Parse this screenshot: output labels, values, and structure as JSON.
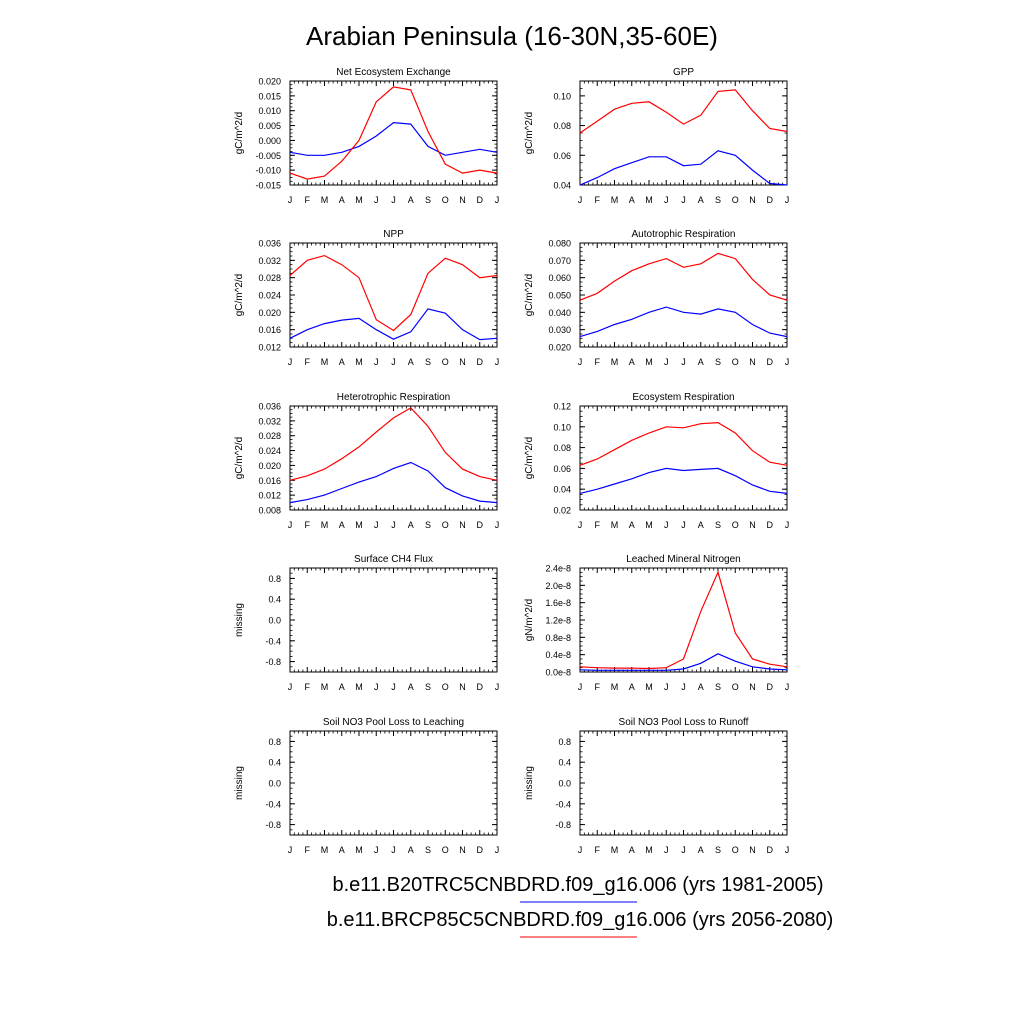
{
  "title": "Arabian Peninsula (16-30N,35-60E)",
  "months": [
    "J",
    "F",
    "M",
    "A",
    "M",
    "J",
    "J",
    "A",
    "S",
    "O",
    "N",
    "D",
    "J"
  ],
  "legend": [
    {
      "label": "b.e11.B20TRC5CNBDRD.f09_g16.006 (yrs 1981-2005)",
      "color": "#0000ff"
    },
    {
      "label": "b.e11.BRCP85C5CNBDRD.f09_g16.006 (yrs 2056-2080)",
      "color": "#ff0000"
    }
  ],
  "chart_data": [
    {
      "type": "line",
      "title": "Net Ecosystem Exchange",
      "ylabel": "gC/m^2/d",
      "ylim": [
        -0.015,
        0.02
      ],
      "yticks": [
        -0.015,
        -0.01,
        -0.005,
        0.0,
        0.005,
        0.01,
        0.015,
        0.02
      ],
      "ytick_labels": [
        "-0.015",
        "-0.010",
        "-0.005",
        "0.000",
        "0.005",
        "0.010",
        "0.015",
        "0.020"
      ],
      "series": [
        {
          "color": "#0000ff",
          "values": [
            -0.004,
            -0.005,
            -0.005,
            -0.004,
            -0.002,
            0.0015,
            0.006,
            0.0055,
            -0.002,
            -0.005,
            -0.004,
            -0.003,
            -0.004
          ]
        },
        {
          "color": "#ff0000",
          "values": [
            -0.011,
            -0.013,
            -0.012,
            -0.007,
            0.0,
            0.013,
            0.018,
            0.017,
            0.003,
            -0.008,
            -0.011,
            -0.01,
            -0.011
          ]
        }
      ]
    },
    {
      "type": "line",
      "title": "GPP",
      "ylabel": "gC/m^2/d",
      "ylim": [
        0.04,
        0.11
      ],
      "yticks": [
        0.04,
        0.06,
        0.08,
        0.1
      ],
      "ytick_labels": [
        "0.04",
        "0.06",
        "0.08",
        "0.10"
      ],
      "series": [
        {
          "color": "#0000ff",
          "values": [
            0.04,
            0.045,
            0.051,
            0.055,
            0.059,
            0.059,
            0.053,
            0.054,
            0.063,
            0.06,
            0.05,
            0.041,
            0.04
          ]
        },
        {
          "color": "#ff0000",
          "values": [
            0.075,
            0.083,
            0.091,
            0.095,
            0.096,
            0.089,
            0.081,
            0.087,
            0.103,
            0.104,
            0.09,
            0.078,
            0.076
          ]
        }
      ]
    },
    {
      "type": "line",
      "title": "NPP",
      "ylabel": "gC/m^2/d",
      "ylim": [
        0.012,
        0.036
      ],
      "yticks": [
        0.012,
        0.016,
        0.02,
        0.024,
        0.028,
        0.032,
        0.036
      ],
      "ytick_labels": [
        "0.012",
        "0.016",
        "0.020",
        "0.024",
        "0.028",
        "0.032",
        "0.036"
      ],
      "series": [
        {
          "color": "#0000ff",
          "values": [
            0.014,
            0.016,
            0.0174,
            0.0182,
            0.0186,
            0.016,
            0.0138,
            0.0155,
            0.0208,
            0.0198,
            0.016,
            0.0137,
            0.014
          ]
        },
        {
          "color": "#ff0000",
          "values": [
            0.0285,
            0.032,
            0.0331,
            0.031,
            0.028,
            0.0183,
            0.0158,
            0.0195,
            0.029,
            0.0325,
            0.031,
            0.028,
            0.0285
          ]
        }
      ]
    },
    {
      "type": "line",
      "title": "Autotrophic Respiration",
      "ylabel": "gC/m^2/d",
      "ylim": [
        0.02,
        0.08
      ],
      "yticks": [
        0.02,
        0.03,
        0.04,
        0.05,
        0.06,
        0.07,
        0.08
      ],
      "ytick_labels": [
        "0.020",
        "0.030",
        "0.040",
        "0.050",
        "0.060",
        "0.070",
        "0.080"
      ],
      "series": [
        {
          "color": "#0000ff",
          "values": [
            0.026,
            0.029,
            0.033,
            0.036,
            0.04,
            0.043,
            0.04,
            0.039,
            0.042,
            0.04,
            0.033,
            0.028,
            0.026
          ]
        },
        {
          "color": "#ff0000",
          "values": [
            0.047,
            0.051,
            0.058,
            0.064,
            0.068,
            0.071,
            0.066,
            0.068,
            0.074,
            0.071,
            0.059,
            0.05,
            0.047
          ]
        }
      ]
    },
    {
      "type": "line",
      "title": "Heterotrophic Respiration",
      "ylabel": "gC/m^2/d",
      "ylim": [
        0.008,
        0.036
      ],
      "yticks": [
        0.008,
        0.012,
        0.016,
        0.02,
        0.024,
        0.028,
        0.032,
        0.036
      ],
      "ytick_labels": [
        "0.008",
        "0.012",
        "0.016",
        "0.020",
        "0.024",
        "0.028",
        "0.032",
        "0.036"
      ],
      "series": [
        {
          "color": "#0000ff",
          "values": [
            0.01,
            0.0108,
            0.012,
            0.0138,
            0.0155,
            0.017,
            0.0192,
            0.0208,
            0.0185,
            0.014,
            0.0118,
            0.0104,
            0.01
          ]
        },
        {
          "color": "#ff0000",
          "values": [
            0.016,
            0.0172,
            0.019,
            0.0218,
            0.025,
            0.029,
            0.0328,
            0.0355,
            0.0305,
            0.0235,
            0.019,
            0.017,
            0.016
          ]
        }
      ]
    },
    {
      "type": "line",
      "title": "Ecosystem Respiration",
      "ylabel": "gC/m^2/d",
      "ylim": [
        0.02,
        0.12
      ],
      "yticks": [
        0.02,
        0.04,
        0.06,
        0.08,
        0.1,
        0.12
      ],
      "ytick_labels": [
        "0.02",
        "0.04",
        "0.06",
        "0.08",
        "0.10",
        "0.12"
      ],
      "series": [
        {
          "color": "#0000ff",
          "values": [
            0.036,
            0.04,
            0.045,
            0.05,
            0.056,
            0.06,
            0.058,
            0.059,
            0.06,
            0.053,
            0.044,
            0.038,
            0.036
          ]
        },
        {
          "color": "#ff0000",
          "values": [
            0.063,
            0.069,
            0.078,
            0.087,
            0.094,
            0.1,
            0.099,
            0.103,
            0.104,
            0.094,
            0.077,
            0.066,
            0.063
          ]
        }
      ]
    },
    {
      "type": "line",
      "title": "Surface CH4 Flux",
      "ylabel": "missing",
      "ylim": [
        -1.0,
        1.0
      ],
      "yticks": [
        -0.8,
        -0.4,
        0.0,
        0.4,
        0.8
      ],
      "ytick_labels": [
        "-0.8",
        "-0.4",
        "0.0",
        "0.4",
        "0.8"
      ],
      "series": []
    },
    {
      "type": "line",
      "title": "Leached Mineral Nitrogen",
      "ylabel": "gN/m^2/d",
      "ylim": [
        0.0,
        2.4e-08
      ],
      "yticks": [
        0.0,
        4e-09,
        8e-09,
        1.2e-08,
        1.6e-08,
        2e-08,
        2.4e-08
      ],
      "ytick_labels": [
        "0.0e-8",
        "0.4e-8",
        "0.8e-8",
        "1.2e-8",
        "1.6e-8",
        "2.0e-8",
        "2.4e-8"
      ],
      "series": [
        {
          "color": "#0000ff",
          "values": [
            5e-10,
            4e-10,
            4e-10,
            4e-10,
            4e-10,
            4e-10,
            7e-10,
            2e-09,
            4.2e-09,
            2.5e-09,
            1.2e-09,
            7e-10,
            5e-10
          ]
        },
        {
          "color": "#ff0000",
          "values": [
            1.2e-09,
            1e-09,
            9e-10,
            9e-10,
            8e-10,
            1e-09,
            3e-09,
            1.4e-08,
            2.3e-08,
            9e-09,
            3e-09,
            1.8e-09,
            1.2e-09
          ]
        }
      ]
    },
    {
      "type": "line",
      "title": "Soil NO3 Pool Loss to Leaching",
      "ylabel": "missing",
      "ylim": [
        -1.0,
        1.0
      ],
      "yticks": [
        -0.8,
        -0.4,
        0.0,
        0.4,
        0.8
      ],
      "ytick_labels": [
        "-0.8",
        "-0.4",
        "0.0",
        "0.4",
        "0.8"
      ],
      "series": []
    },
    {
      "type": "line",
      "title": "Soil NO3 Pool Loss to Runoff",
      "ylabel": "missing",
      "ylim": [
        -1.0,
        1.0
      ],
      "yticks": [
        -0.8,
        -0.4,
        0.0,
        0.4,
        0.8
      ],
      "ytick_labels": [
        "-0.8",
        "-0.4",
        "0.0",
        "0.4",
        "0.8"
      ],
      "series": []
    }
  ]
}
